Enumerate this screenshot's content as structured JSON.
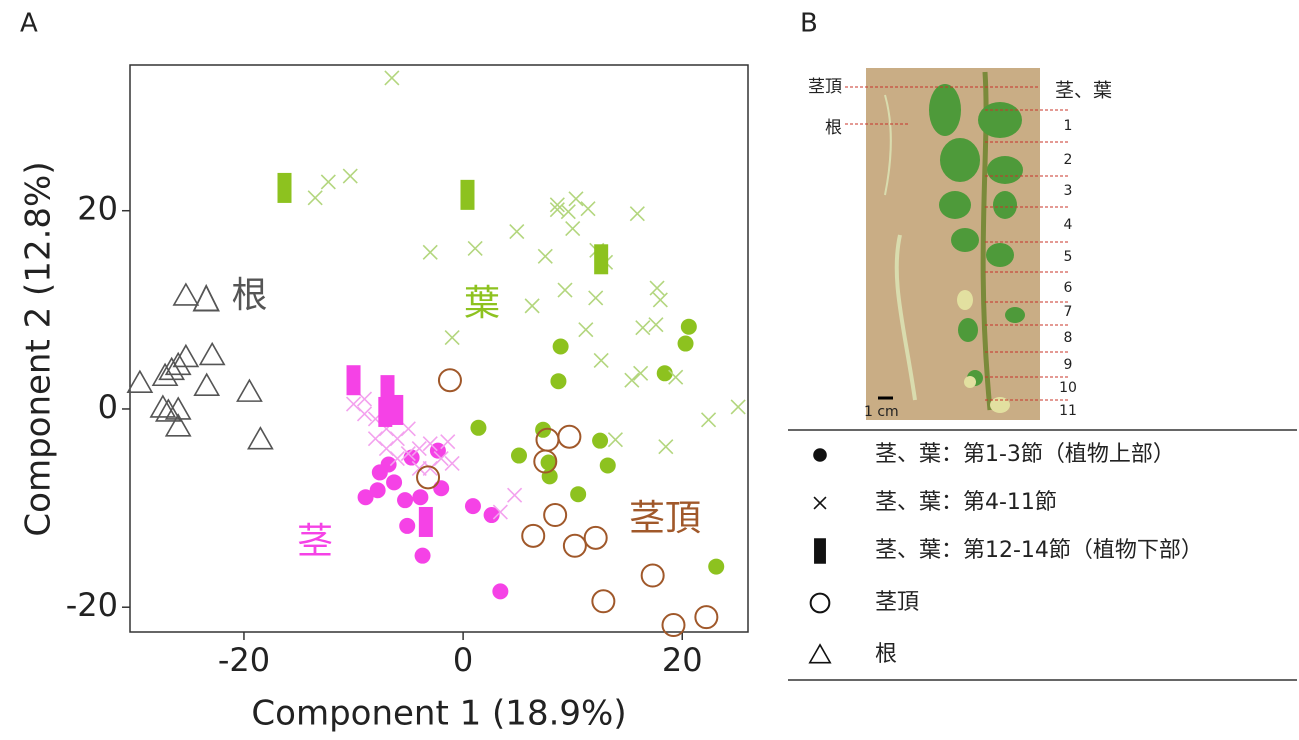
{
  "chart_data": {
    "type": "scatter",
    "panel_label": "A",
    "xlabel": "Component 1 (18.9%)",
    "ylabel": "Component 2 (12.8%)",
    "xlim": [
      -30.4,
      26
    ],
    "ylim": [
      -22.5,
      34.7
    ],
    "xticks": [
      -20,
      0,
      20
    ],
    "yticks": [
      -20,
      0,
      20
    ],
    "series": [
      {
        "marker": "circle",
        "color": "#8dc21f",
        "x": [
          20.6,
          20.3,
          8.9,
          18.4,
          8.7,
          1.4,
          7.3,
          5.1,
          7.8,
          12.5,
          13.2,
          7.9,
          10.5,
          23.1
        ],
        "values": [
          8.3,
          6.6,
          6.3,
          3.6,
          2.8,
          -1.9,
          -2.1,
          -4.7,
          -5.4,
          -3.2,
          -5.7,
          -6.8,
          -8.6,
          -15.9
        ]
      },
      {
        "marker": "circle",
        "color": "#f542e6",
        "x": [
          -2.3,
          -4.7,
          -6.8,
          -7.6,
          -8.9,
          -7.8,
          -6.3,
          -5.3,
          -3.9,
          -2.0,
          -5.1,
          -3.7,
          0.9,
          2.6,
          3.4
        ],
        "values": [
          -4.2,
          -4.9,
          -5.6,
          -6.4,
          -8.9,
          -8.2,
          -7.4,
          -9.2,
          -8.9,
          -8.0,
          -11.8,
          -14.8,
          -9.8,
          -10.7,
          -18.4
        ]
      },
      {
        "marker": "cross",
        "color": "#b3d67e",
        "x": [
          -6.5,
          -13.5,
          -12.3,
          -10.3,
          -3.0,
          1.1,
          4.9,
          6.3,
          7.5,
          8.6,
          8.6,
          9.6,
          10.3,
          11.4,
          10.0,
          9.3,
          12.2,
          13.0,
          12.1,
          11.2,
          12.6,
          15.9,
          16.4,
          17.6,
          17.7,
          18.0,
          15.4,
          16.2,
          19.4,
          18.5,
          22.4,
          25.1,
          13.9,
          -1.0
        ],
        "values": [
          33.4,
          21.3,
          22.9,
          23.5,
          15.8,
          16.2,
          17.9,
          10.4,
          15.4,
          20.6,
          20.1,
          19.9,
          21.2,
          20.2,
          18.2,
          12.0,
          16.0,
          14.8,
          11.2,
          8.0,
          4.9,
          19.7,
          8.2,
          8.5,
          12.2,
          11.0,
          2.9,
          3.6,
          3.2,
          -3.8,
          -1.1,
          0.2,
          -3.1,
          7.2
        ]
      },
      {
        "marker": "cross",
        "color": "#f3a2ee",
        "x": [
          -10,
          -9,
          -8,
          -7,
          -6,
          -5,
          -4,
          -3,
          -2,
          -1,
          -8,
          -6,
          -4,
          -9,
          -5,
          -3,
          -7,
          4.7,
          3.4,
          -1.4
        ],
        "values": [
          0.5,
          -0.5,
          -1,
          -2,
          -3,
          -2,
          -4,
          -3.5,
          -5,
          -5.5,
          -3,
          -5,
          -6,
          1,
          -4.5,
          -6,
          -4,
          -8.7,
          -10.4,
          -3.3
        ]
      },
      {
        "marker": "bar",
        "color": "#8dc21f",
        "x": [
          -16.3,
          0.4,
          12.6
        ],
        "values": [
          22.3,
          21.6,
          15.1
        ]
      },
      {
        "marker": "bar",
        "color": "#f542e6",
        "x": [
          -10,
          -6.9,
          -6.1,
          -7.1,
          -3.4
        ],
        "values": [
          2.9,
          1.9,
          -0.1,
          -0.3,
          -11.4
        ]
      },
      {
        "marker": "open-circle",
        "color": "#a0582a",
        "x": [
          -1.2,
          -3.2,
          7.7,
          7.5,
          9.7,
          6.4,
          8.4,
          10.2,
          12.1,
          17.3,
          12.8,
          19.2,
          22.2
        ],
        "values": [
          2.9,
          -6.9,
          -3.1,
          -5.3,
          -2.8,
          -12.8,
          -10.7,
          -13.8,
          -13,
          -16.8,
          -19.4,
          -21.8,
          -21.0
        ]
      },
      {
        "marker": "triangle",
        "color": "#555555",
        "x": [
          -25.3,
          -22.9,
          -25.3,
          -26.0,
          -27.2,
          -29.5,
          -23.4,
          -19.5,
          -27.4,
          -26,
          -26.9,
          -26,
          -18.5,
          -26.6
        ],
        "values": [
          11.4,
          5.4,
          5.2,
          4.4,
          3.3,
          2.6,
          2.3,
          1.7,
          0.1,
          -0.1,
          -0.3,
          -1.8,
          -3.1,
          3.9
        ]
      }
    ],
    "annotations": [
      {
        "text": "△ 根",
        "color": "#555555"
      },
      {
        "text": "葉",
        "color": "#8dc21f"
      },
      {
        "text": "茎",
        "color": "#f542e6"
      },
      {
        "text": "茎頂",
        "color": "#a0582a"
      }
    ]
  },
  "panel_b": {
    "panel_label": "B",
    "photo_labels": [
      "茎頂",
      "根",
      "茎、葉"
    ],
    "scale_label": "1 cm",
    "nodes": [
      "1",
      "2",
      "3",
      "4",
      "5",
      "6",
      "7",
      "8",
      "9",
      "10",
      "11"
    ],
    "legend": [
      {
        "marker": "circle",
        "label": "茎、葉：第1-3節（植物上部）"
      },
      {
        "marker": "cross",
        "label": "茎、葉：第4-11節"
      },
      {
        "marker": "bar",
        "label": "茎、葉：第12-14節（植物下部）"
      },
      {
        "marker": "open-circle",
        "label": "茎頂"
      },
      {
        "marker": "triangle",
        "label": "根"
      }
    ]
  }
}
